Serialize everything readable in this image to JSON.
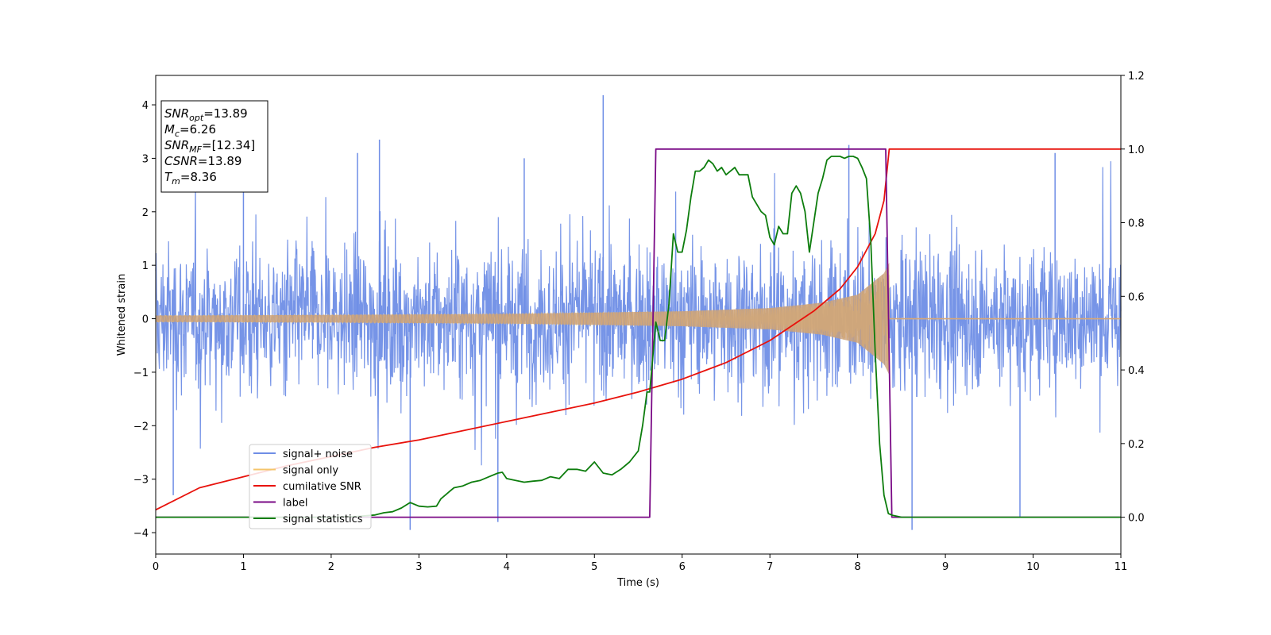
{
  "chart_data": {
    "type": "line",
    "xlabel": "Time (s)",
    "ylabel": "Whitened strain",
    "xlim": [
      0,
      11
    ],
    "ylim": [
      -4.4,
      4.55
    ],
    "y2lim": [
      -0.1,
      1.2
    ],
    "x_ticks": [
      0,
      1,
      2,
      3,
      4,
      5,
      6,
      7,
      8,
      9,
      10,
      11
    ],
    "y_ticks": [
      -4,
      -3,
      -2,
      -1,
      0,
      1,
      2,
      3,
      4
    ],
    "y2_ticks": [
      "0.0",
      "0.2",
      "0.4",
      "0.6",
      "0.8",
      "1.0",
      "1.2"
    ],
    "legend_position": "lower-left",
    "info_box": {
      "position": "top-left",
      "lines": [
        {
          "name": "SNR",
          "sub": "opt",
          "value": "=13.89"
        },
        {
          "name": "M",
          "sub": "c",
          "value": "=6.26"
        },
        {
          "name": "SNR",
          "sub": "MF",
          "value": "=[12.34]"
        },
        {
          "name": "CSNR",
          "sub": "",
          "value": "=13.89"
        },
        {
          "name": "T",
          "sub": "m",
          "value": "=8.36"
        }
      ]
    },
    "series": [
      {
        "name": "signal+ noise",
        "color": "#6f8ee6",
        "axis": "left",
        "description": "whitened strain noise spanning roughly ±2 to ±3.5",
        "spikes": [
          [
            1.0,
            2.9
          ],
          [
            2.3,
            3.1
          ],
          [
            2.55,
            3.35
          ],
          [
            4.2,
            3.0
          ],
          [
            5.1,
            4.18
          ],
          [
            7.9,
            3.25
          ],
          [
            10.25,
            3.1
          ],
          [
            2.9,
            -3.95
          ],
          [
            3.9,
            -3.8
          ],
          [
            8.62,
            -3.95
          ],
          [
            9.85,
            -3.7
          ],
          [
            0.2,
            -3.3
          ]
        ]
      },
      {
        "name": "signal only",
        "color": "#f5c56b",
        "axis": "left",
        "description": "chirp signal with growing amplitude ending at about 8.36 s",
        "amplitude": [
          [
            0,
            0.06
          ],
          [
            2,
            0.07
          ],
          [
            4,
            0.09
          ],
          [
            6,
            0.14
          ],
          [
            7,
            0.2
          ],
          [
            7.6,
            0.3
          ],
          [
            8.0,
            0.45
          ],
          [
            8.3,
            0.85
          ],
          [
            8.36,
            1.05
          ],
          [
            8.37,
            0.0
          ],
          [
            11,
            0.0
          ]
        ]
      },
      {
        "name": "cumilative SNR",
        "color": "#e8120c",
        "axis": "right",
        "x": [
          0,
          0.5,
          1,
          1.5,
          2,
          2.5,
          3,
          3.5,
          4,
          4.5,
          5,
          5.5,
          6,
          6.5,
          7,
          7.5,
          7.8,
          8.0,
          8.2,
          8.3,
          8.36,
          8.4,
          11
        ],
        "y": [
          0.02,
          0.08,
          0.11,
          0.14,
          0.165,
          0.19,
          0.21,
          0.235,
          0.26,
          0.285,
          0.31,
          0.34,
          0.375,
          0.42,
          0.48,
          0.56,
          0.62,
          0.68,
          0.77,
          0.86,
          1.0,
          1.0,
          1.0
        ]
      },
      {
        "name": "label",
        "color": "#7a0a86",
        "axis": "right",
        "x": [
          0,
          5.63,
          5.7,
          8.32,
          8.39,
          11
        ],
        "y": [
          0.0,
          0.0,
          1.0,
          1.0,
          0.0,
          0.0
        ]
      },
      {
        "name": "signal statistics",
        "color": "#0d7d0d",
        "axis": "right",
        "x": [
          0,
          0.5,
          1,
          1.5,
          2,
          2.3,
          2.5,
          2.6,
          2.7,
          2.8,
          2.9,
          3.0,
          3.1,
          3.2,
          3.25,
          3.3,
          3.35,
          3.4,
          3.5,
          3.6,
          3.7,
          3.8,
          3.9,
          3.95,
          4.0,
          4.1,
          4.2,
          4.3,
          4.4,
          4.5,
          4.6,
          4.7,
          4.8,
          4.9,
          5.0,
          5.1,
          5.2,
          5.3,
          5.4,
          5.5,
          5.55,
          5.6,
          5.63,
          5.7,
          5.75,
          5.8,
          5.85,
          5.9,
          5.95,
          6.0,
          6.05,
          6.1,
          6.15,
          6.2,
          6.25,
          6.3,
          6.35,
          6.4,
          6.45,
          6.5,
          6.55,
          6.6,
          6.65,
          6.7,
          6.75,
          6.8,
          6.85,
          6.9,
          6.95,
          7.0,
          7.05,
          7.1,
          7.15,
          7.2,
          7.25,
          7.3,
          7.35,
          7.4,
          7.45,
          7.5,
          7.55,
          7.6,
          7.65,
          7.7,
          7.75,
          7.8,
          7.85,
          7.9,
          7.95,
          8.0,
          8.05,
          8.1,
          8.15,
          8.2,
          8.25,
          8.3,
          8.35,
          8.4,
          8.5,
          11
        ],
        "y": [
          0.0,
          0.0,
          0.0,
          0.0,
          0.0,
          0.002,
          0.006,
          0.012,
          0.015,
          0.025,
          0.04,
          0.03,
          0.028,
          0.03,
          0.05,
          0.06,
          0.07,
          0.08,
          0.085,
          0.095,
          0.1,
          0.11,
          0.12,
          0.122,
          0.105,
          0.1,
          0.095,
          0.098,
          0.1,
          0.11,
          0.105,
          0.13,
          0.13,
          0.125,
          0.15,
          0.12,
          0.115,
          0.13,
          0.15,
          0.18,
          0.25,
          0.34,
          0.34,
          0.53,
          0.48,
          0.48,
          0.58,
          0.77,
          0.72,
          0.72,
          0.78,
          0.87,
          0.94,
          0.94,
          0.95,
          0.97,
          0.96,
          0.94,
          0.95,
          0.93,
          0.94,
          0.95,
          0.93,
          0.93,
          0.93,
          0.87,
          0.85,
          0.83,
          0.82,
          0.76,
          0.74,
          0.79,
          0.77,
          0.77,
          0.88,
          0.9,
          0.88,
          0.83,
          0.72,
          0.8,
          0.88,
          0.92,
          0.97,
          0.98,
          0.98,
          0.98,
          0.975,
          0.98,
          0.98,
          0.975,
          0.95,
          0.92,
          0.75,
          0.45,
          0.2,
          0.06,
          0.01,
          0.005,
          0.0,
          0.0
        ]
      }
    ]
  }
}
